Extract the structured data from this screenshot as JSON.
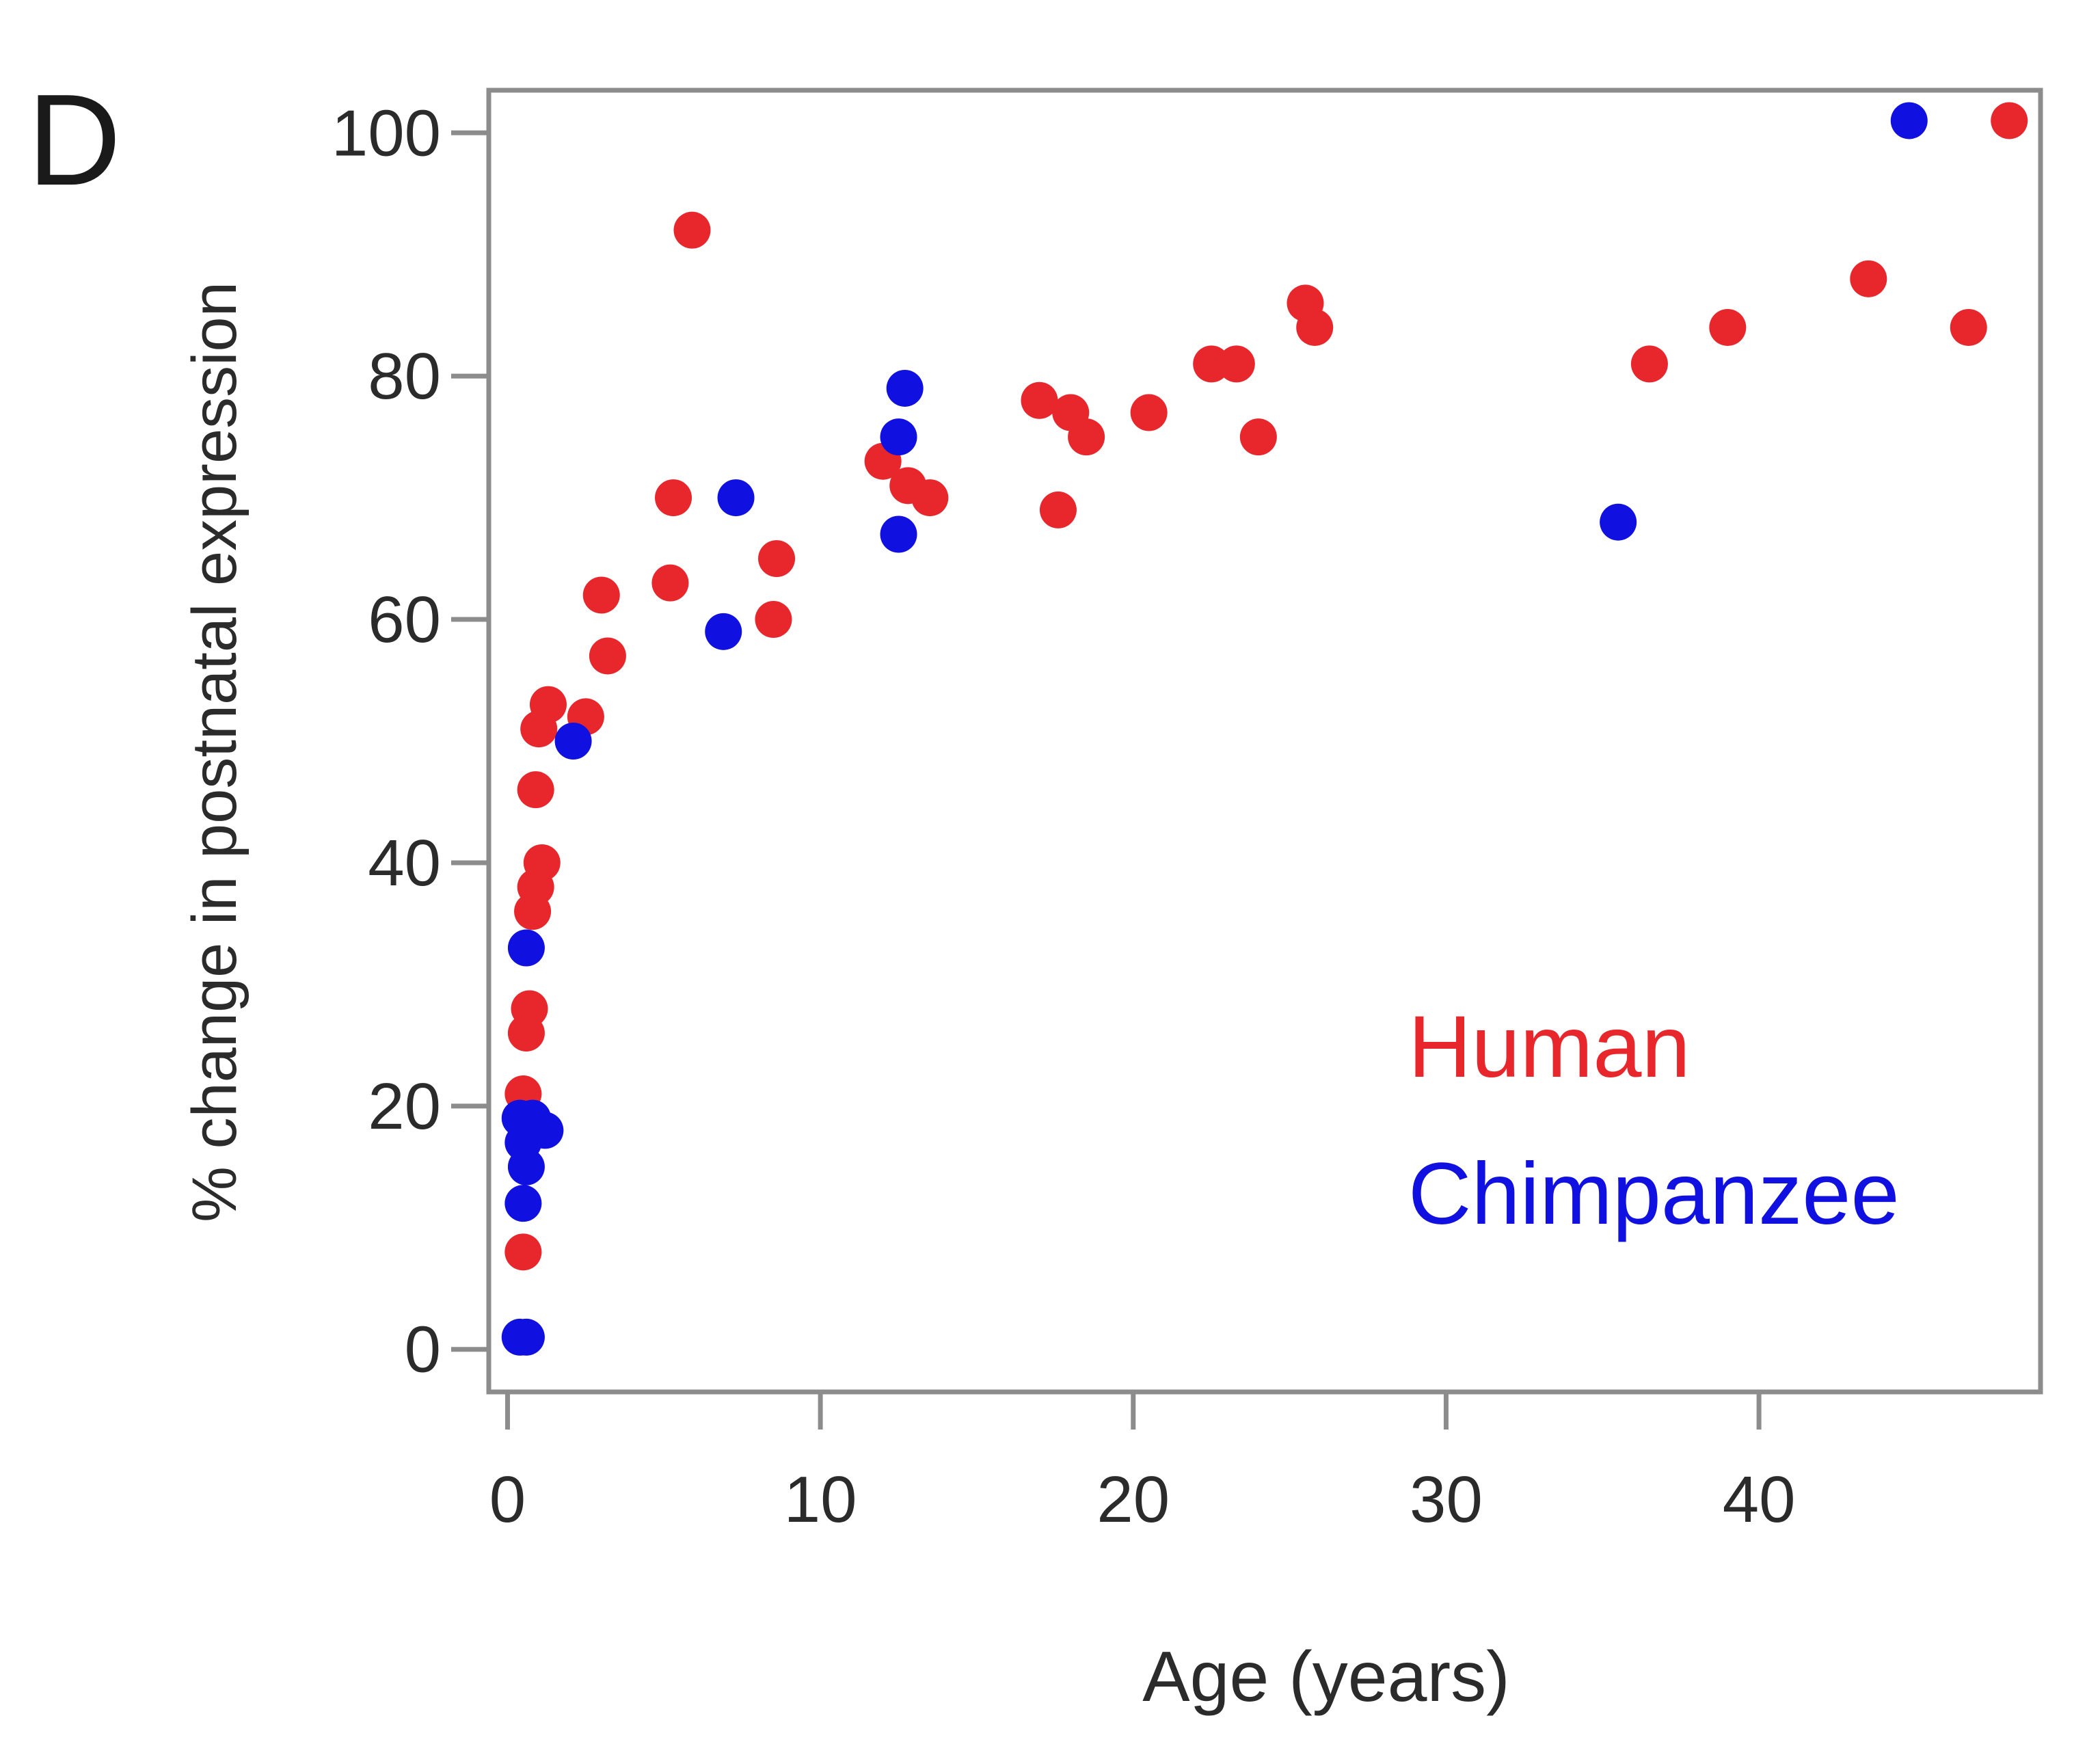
{
  "panel_label": "D",
  "chart_data": {
    "type": "scatter",
    "xlabel": "Age (years)",
    "ylabel": "% change in postnatal expression",
    "xlim": [
      -0.6,
      49
    ],
    "ylim": [
      -3.5,
      103.5
    ],
    "xticks": [
      0,
      10,
      20,
      30,
      40
    ],
    "yticks": [
      0,
      20,
      40,
      60,
      80,
      100
    ],
    "grid": false,
    "legend_position": "bottom-right",
    "series": [
      {
        "name": "Human",
        "color": "#e8272d",
        "points": [
          [
            0.5,
            8
          ],
          [
            0.5,
            21
          ],
          [
            0.6,
            26
          ],
          [
            0.7,
            28
          ],
          [
            0.8,
            36
          ],
          [
            0.9,
            38
          ],
          [
            1.1,
            40
          ],
          [
            0.9,
            46
          ],
          [
            1.0,
            51
          ],
          [
            1.3,
            53
          ],
          [
            2.5,
            52
          ],
          [
            3.2,
            57
          ],
          [
            3.0,
            62
          ],
          [
            5.2,
            63
          ],
          [
            5.3,
            70
          ],
          [
            5.9,
            92
          ],
          [
            8.5,
            60
          ],
          [
            8.6,
            65
          ],
          [
            12.0,
            73
          ],
          [
            12.8,
            71
          ],
          [
            13.5,
            70
          ],
          [
            17.0,
            78
          ],
          [
            17.6,
            69
          ],
          [
            18.0,
            77
          ],
          [
            18.5,
            75
          ],
          [
            20.5,
            77
          ],
          [
            22.5,
            81
          ],
          [
            23.3,
            81
          ],
          [
            24.0,
            75
          ],
          [
            25.5,
            86
          ],
          [
            25.8,
            84
          ],
          [
            36.5,
            81
          ],
          [
            39.0,
            84
          ],
          [
            43.5,
            88
          ],
          [
            46.7,
            84
          ],
          [
            48.0,
            101
          ]
        ]
      },
      {
        "name": "Chimpanzee",
        "color": "#1010e0",
        "points": [
          [
            0.4,
            1
          ],
          [
            0.6,
            1
          ],
          [
            0.5,
            12
          ],
          [
            0.6,
            15
          ],
          [
            0.5,
            17
          ],
          [
            0.4,
            19
          ],
          [
            0.8,
            19
          ],
          [
            1.2,
            18
          ],
          [
            0.6,
            33
          ],
          [
            2.1,
            50
          ],
          [
            6.9,
            59
          ],
          [
            7.3,
            70
          ],
          [
            12.5,
            67
          ],
          [
            12.5,
            75
          ],
          [
            12.7,
            79
          ],
          [
            35.5,
            68
          ],
          [
            44.8,
            101
          ]
        ]
      }
    ]
  }
}
